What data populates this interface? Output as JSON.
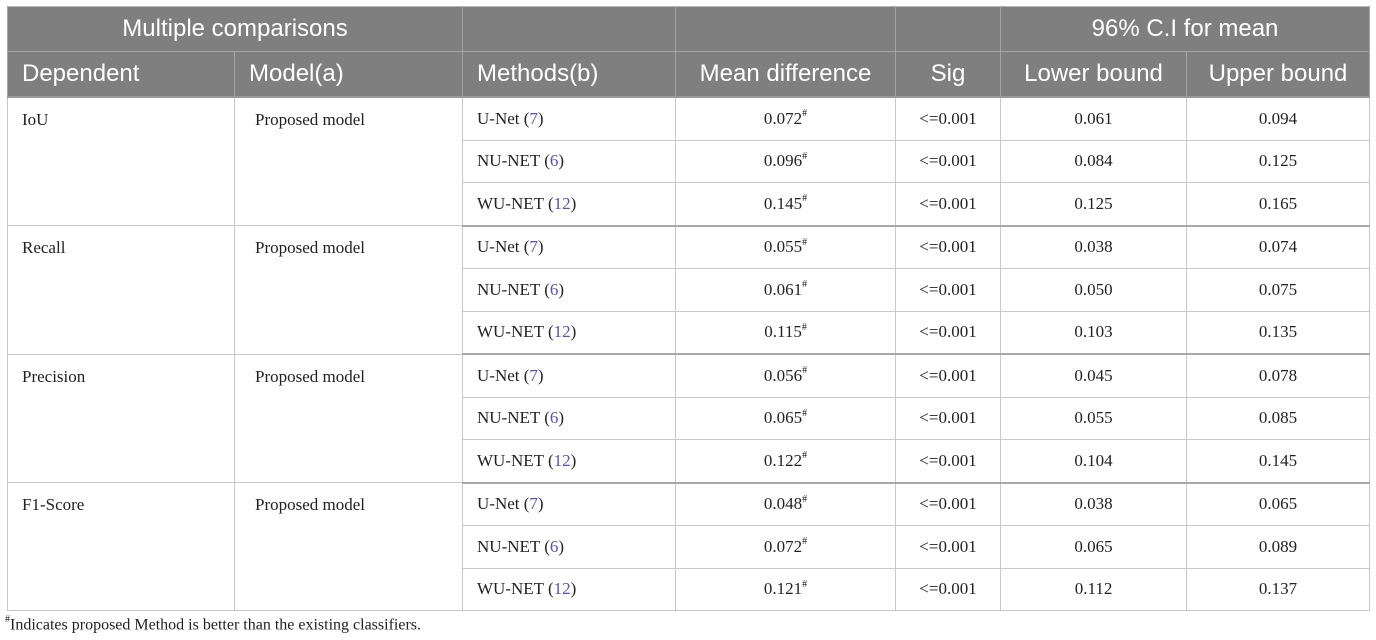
{
  "header": {
    "group1": "Multiple comparisons",
    "group2": "96% C.I for mean",
    "columns": [
      "Dependent",
      "Model(a)",
      "Methods(b)",
      "Mean difference",
      "Sig",
      "Lower bound",
      "Upper bound"
    ]
  },
  "groups": [
    {
      "dependent": "IoU",
      "model": "Proposed model",
      "rows": [
        {
          "method": "U-Net",
          "ref": "7",
          "mean": "0.072",
          "mark": "#",
          "sig": "<=0.001",
          "lower": "0.061",
          "upper": "0.094"
        },
        {
          "method": "NU-NET",
          "ref": "6",
          "mean": "0.096",
          "mark": "#",
          "sig": "<=0.001",
          "lower": "0.084",
          "upper": "0.125"
        },
        {
          "method": "WU-NET",
          "ref": "12",
          "mean": "0.145",
          "mark": "#",
          "sig": "<=0.001",
          "lower": "0.125",
          "upper": "0.165"
        }
      ]
    },
    {
      "dependent": "Recall",
      "model": "Proposed model",
      "rows": [
        {
          "method": "U-Net",
          "ref": "7",
          "mean": "0.055",
          "mark": "#",
          "sig": "<=0.001",
          "lower": "0.038",
          "upper": "0.074"
        },
        {
          "method": "NU-NET",
          "ref": "6",
          "mean": "0.061",
          "mark": "#",
          "sig": "<=0.001",
          "lower": "0.050",
          "upper": "0.075"
        },
        {
          "method": "WU-NET",
          "ref": "12",
          "mean": "0.115",
          "mark": "#",
          "sig": "<=0.001",
          "lower": "0.103",
          "upper": "0.135"
        }
      ]
    },
    {
      "dependent": "Precision",
      "model": "Proposed model",
      "rows": [
        {
          "method": "U-Net",
          "ref": "7",
          "mean": "0.056",
          "mark": "#",
          "sig": "<=0.001",
          "lower": "0.045",
          "upper": "0.078"
        },
        {
          "method": "NU-NET",
          "ref": "6",
          "mean": "0.065",
          "mark": "#",
          "sig": "<=0.001",
          "lower": "0.055",
          "upper": "0.085"
        },
        {
          "method": "WU-NET",
          "ref": "12",
          "mean": "0.122",
          "mark": "#",
          "sig": "<=0.001",
          "lower": "0.104",
          "upper": "0.145"
        }
      ]
    },
    {
      "dependent": "F1-Score",
      "model": "Proposed model",
      "rows": [
        {
          "method": "U-Net",
          "ref": "7",
          "mean": "0.048",
          "mark": "#",
          "sig": "<=0.001",
          "lower": "0.038",
          "upper": "0.065"
        },
        {
          "method": "NU-NET",
          "ref": "6",
          "mean": "0.072",
          "mark": "#",
          "sig": "<=0.001",
          "lower": "0.065",
          "upper": "0.089"
        },
        {
          "method": "WU-NET",
          "ref": "12",
          "mean": "0.121",
          "mark": "#",
          "sig": "<=0.001",
          "lower": "0.112",
          "upper": "0.137"
        }
      ]
    }
  ],
  "footnote": {
    "mark": "#",
    "text": "Indicates proposed Method is better than the existing classifiers."
  },
  "colors": {
    "header_bg": "#7f7f7f",
    "header_text": "#ffffff",
    "reference_link": "#5b4fb0"
  }
}
